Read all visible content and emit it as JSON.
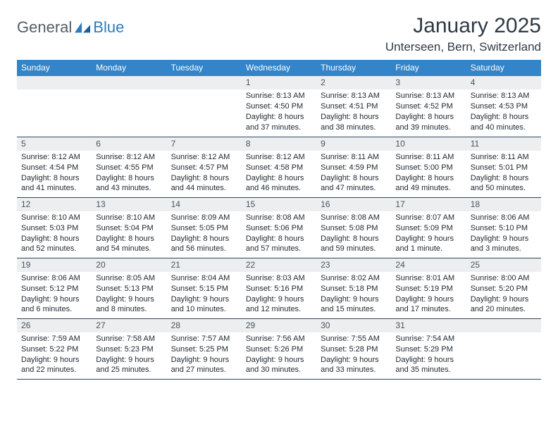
{
  "logo": {
    "general": "General",
    "blue": "Blue"
  },
  "title": "January 2025",
  "location": "Unterseen, Bern, Switzerland",
  "colors": {
    "header_bg": "#3384c8",
    "header_fg": "#ffffff",
    "daynum_bg": "#eceeef",
    "daynum_fg": "#4a5560",
    "body_text": "#222b33",
    "rule": "#30465a",
    "title_color": "#303a44",
    "logo_gray": "#555d66",
    "logo_blue": "#2e7cbf"
  },
  "weekdays": [
    "Sunday",
    "Monday",
    "Tuesday",
    "Wednesday",
    "Thursday",
    "Friday",
    "Saturday"
  ],
  "weeks": [
    [
      null,
      null,
      null,
      {
        "n": "1",
        "sr": "8:13 AM",
        "ss": "4:50 PM",
        "dl": "8 hours and 37 minutes."
      },
      {
        "n": "2",
        "sr": "8:13 AM",
        "ss": "4:51 PM",
        "dl": "8 hours and 38 minutes."
      },
      {
        "n": "3",
        "sr": "8:13 AM",
        "ss": "4:52 PM",
        "dl": "8 hours and 39 minutes."
      },
      {
        "n": "4",
        "sr": "8:13 AM",
        "ss": "4:53 PM",
        "dl": "8 hours and 40 minutes."
      }
    ],
    [
      {
        "n": "5",
        "sr": "8:12 AM",
        "ss": "4:54 PM",
        "dl": "8 hours and 41 minutes."
      },
      {
        "n": "6",
        "sr": "8:12 AM",
        "ss": "4:55 PM",
        "dl": "8 hours and 43 minutes."
      },
      {
        "n": "7",
        "sr": "8:12 AM",
        "ss": "4:57 PM",
        "dl": "8 hours and 44 minutes."
      },
      {
        "n": "8",
        "sr": "8:12 AM",
        "ss": "4:58 PM",
        "dl": "8 hours and 46 minutes."
      },
      {
        "n": "9",
        "sr": "8:11 AM",
        "ss": "4:59 PM",
        "dl": "8 hours and 47 minutes."
      },
      {
        "n": "10",
        "sr": "8:11 AM",
        "ss": "5:00 PM",
        "dl": "8 hours and 49 minutes."
      },
      {
        "n": "11",
        "sr": "8:11 AM",
        "ss": "5:01 PM",
        "dl": "8 hours and 50 minutes."
      }
    ],
    [
      {
        "n": "12",
        "sr": "8:10 AM",
        "ss": "5:03 PM",
        "dl": "8 hours and 52 minutes."
      },
      {
        "n": "13",
        "sr": "8:10 AM",
        "ss": "5:04 PM",
        "dl": "8 hours and 54 minutes."
      },
      {
        "n": "14",
        "sr": "8:09 AM",
        "ss": "5:05 PM",
        "dl": "8 hours and 56 minutes."
      },
      {
        "n": "15",
        "sr": "8:08 AM",
        "ss": "5:06 PM",
        "dl": "8 hours and 57 minutes."
      },
      {
        "n": "16",
        "sr": "8:08 AM",
        "ss": "5:08 PM",
        "dl": "8 hours and 59 minutes."
      },
      {
        "n": "17",
        "sr": "8:07 AM",
        "ss": "5:09 PM",
        "dl": "9 hours and 1 minute."
      },
      {
        "n": "18",
        "sr": "8:06 AM",
        "ss": "5:10 PM",
        "dl": "9 hours and 3 minutes."
      }
    ],
    [
      {
        "n": "19",
        "sr": "8:06 AM",
        "ss": "5:12 PM",
        "dl": "9 hours and 6 minutes."
      },
      {
        "n": "20",
        "sr": "8:05 AM",
        "ss": "5:13 PM",
        "dl": "9 hours and 8 minutes."
      },
      {
        "n": "21",
        "sr": "8:04 AM",
        "ss": "5:15 PM",
        "dl": "9 hours and 10 minutes."
      },
      {
        "n": "22",
        "sr": "8:03 AM",
        "ss": "5:16 PM",
        "dl": "9 hours and 12 minutes."
      },
      {
        "n": "23",
        "sr": "8:02 AM",
        "ss": "5:18 PM",
        "dl": "9 hours and 15 minutes."
      },
      {
        "n": "24",
        "sr": "8:01 AM",
        "ss": "5:19 PM",
        "dl": "9 hours and 17 minutes."
      },
      {
        "n": "25",
        "sr": "8:00 AM",
        "ss": "5:20 PM",
        "dl": "9 hours and 20 minutes."
      }
    ],
    [
      {
        "n": "26",
        "sr": "7:59 AM",
        "ss": "5:22 PM",
        "dl": "9 hours and 22 minutes."
      },
      {
        "n": "27",
        "sr": "7:58 AM",
        "ss": "5:23 PM",
        "dl": "9 hours and 25 minutes."
      },
      {
        "n": "28",
        "sr": "7:57 AM",
        "ss": "5:25 PM",
        "dl": "9 hours and 27 minutes."
      },
      {
        "n": "29",
        "sr": "7:56 AM",
        "ss": "5:26 PM",
        "dl": "9 hours and 30 minutes."
      },
      {
        "n": "30",
        "sr": "7:55 AM",
        "ss": "5:28 PM",
        "dl": "9 hours and 33 minutes."
      },
      {
        "n": "31",
        "sr": "7:54 AM",
        "ss": "5:29 PM",
        "dl": "9 hours and 35 minutes."
      },
      null
    ]
  ],
  "labels": {
    "sunrise": "Sunrise: ",
    "sunset": "Sunset: ",
    "daylight": "Daylight: "
  }
}
